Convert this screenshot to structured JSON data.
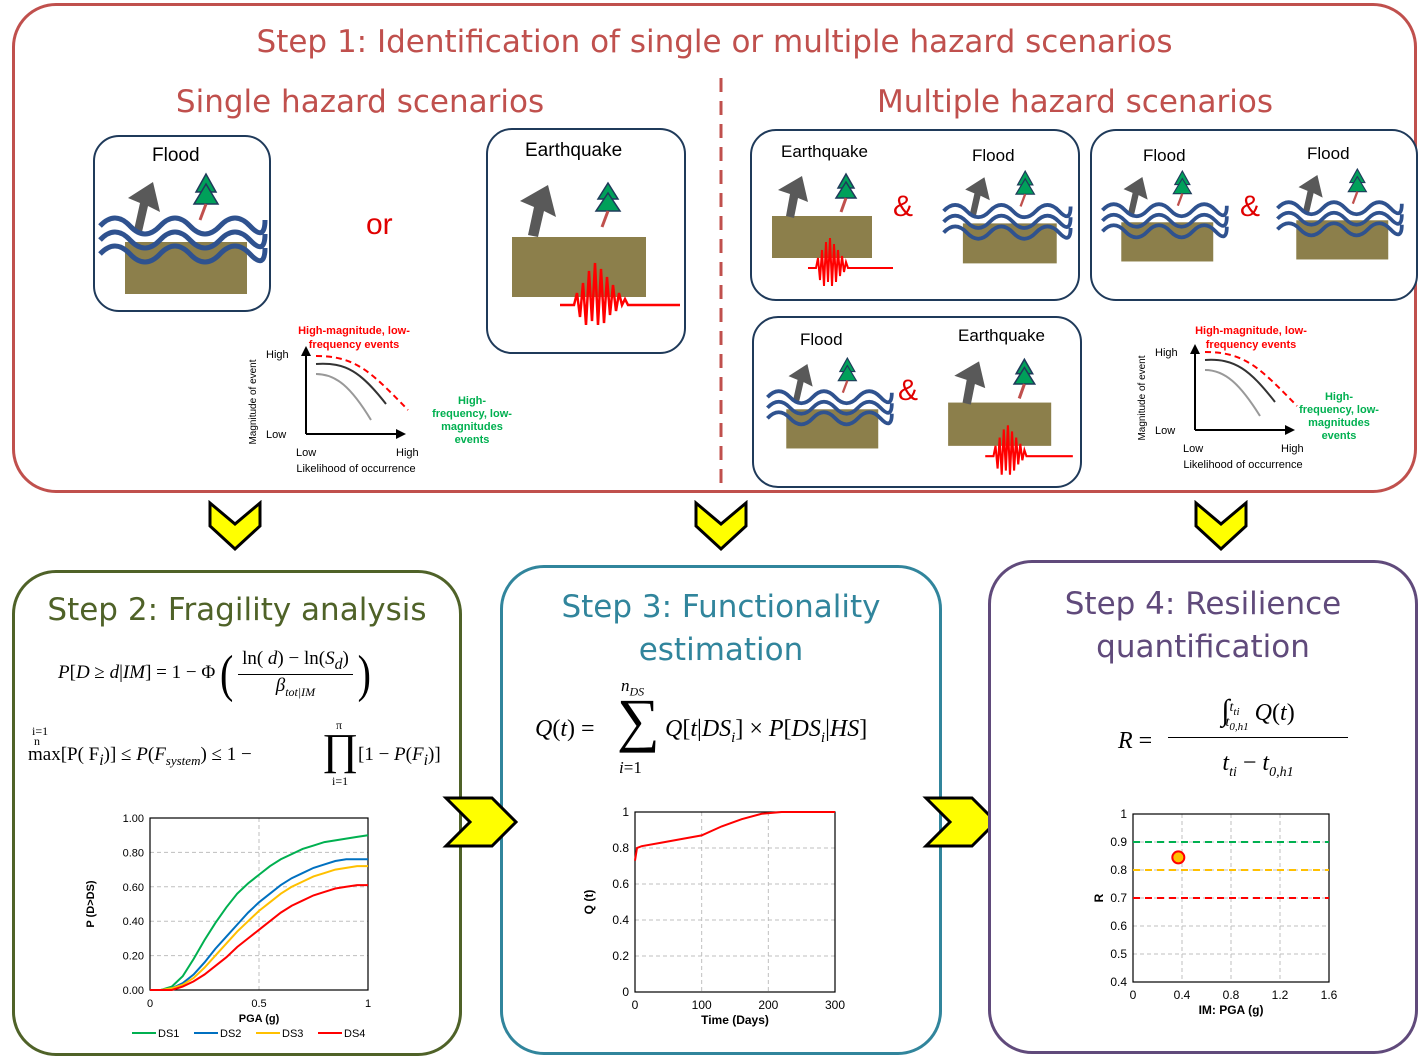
{
  "step1": {
    "title": "Step 1: Identification of single or multiple hazard scenarios",
    "single_heading": "Single hazard scenarios",
    "multiple_heading": "Multiple hazard scenarios",
    "or_label": "or",
    "amp_label": "&",
    "flood_label": "Flood",
    "earthquake_label": "Earthquake",
    "mini_chart": {
      "annotation_red": "High-magnitude, low-frequency events",
      "annotation_red_line1": "High-magnitude, low-",
      "annotation_red_line2": "frequency events",
      "annotation_green_line1": "High-",
      "annotation_green_line2": "frequency, low-",
      "annotation_green_line3": "magnitudes",
      "annotation_green_line4": "events",
      "ylabel": "Magnitude of event",
      "xlabel": "Likelihood of occurrence",
      "high": "High",
      "low": "Low"
    }
  },
  "step2": {
    "title": "Step 2: Fragility analysis"
  },
  "step3": {
    "title_line1": "Step 3: Functionality",
    "title_line2": "estimation"
  },
  "step4": {
    "title_line1": "Step 4: Resilience",
    "title_line2": "quantification"
  },
  "colors": {
    "step1": "#c0504d",
    "step2": "#4f6228",
    "step3": "#31859c",
    "step4": "#604a7b",
    "arrow_fill": "#ffff00",
    "arrow_stroke": "#000000",
    "ground": "#8c7f4b",
    "wave": "#2f528f",
    "quake": "#ff0000",
    "tree": "#00a05a",
    "house": "#595959"
  },
  "chart_data": [
    {
      "type": "line",
      "xlabel": "PGA (g)",
      "ylabel": "P (D>DS)",
      "xlim": [
        0,
        1
      ],
      "ylim": [
        0,
        1
      ],
      "x_ticks": [
        "0",
        "0.5",
        "1"
      ],
      "y_ticks": [
        "0.00",
        "0.20",
        "0.40",
        "0.60",
        "0.80",
        "1.00"
      ],
      "grid": true,
      "legend": "bottom",
      "x": [
        0,
        0.05,
        0.1,
        0.15,
        0.2,
        0.25,
        0.3,
        0.35,
        0.4,
        0.45,
        0.5,
        0.55,
        0.6,
        0.65,
        0.7,
        0.75,
        0.8,
        0.85,
        0.9,
        0.95,
        1.0
      ],
      "series": [
        {
          "name": "DS1",
          "color": "#00b050",
          "values": [
            0,
            0.0,
            0.02,
            0.08,
            0.18,
            0.29,
            0.39,
            0.48,
            0.56,
            0.62,
            0.67,
            0.72,
            0.76,
            0.79,
            0.82,
            0.84,
            0.86,
            0.87,
            0.88,
            0.89,
            0.9
          ]
        },
        {
          "name": "DS2",
          "color": "#0070c0",
          "values": [
            0,
            0.0,
            0.01,
            0.04,
            0.09,
            0.16,
            0.24,
            0.31,
            0.38,
            0.45,
            0.51,
            0.56,
            0.61,
            0.65,
            0.68,
            0.71,
            0.73,
            0.75,
            0.76,
            0.76,
            0.76
          ]
        },
        {
          "name": "DS3",
          "color": "#ffc000",
          "values": [
            0,
            0.0,
            0.01,
            0.03,
            0.07,
            0.13,
            0.2,
            0.27,
            0.34,
            0.4,
            0.46,
            0.51,
            0.56,
            0.6,
            0.63,
            0.66,
            0.68,
            0.7,
            0.71,
            0.72,
            0.72
          ]
        },
        {
          "name": "DS4",
          "color": "#ff0000",
          "values": [
            0,
            0.0,
            0.0,
            0.02,
            0.05,
            0.09,
            0.14,
            0.19,
            0.25,
            0.3,
            0.35,
            0.4,
            0.45,
            0.49,
            0.52,
            0.55,
            0.57,
            0.59,
            0.6,
            0.61,
            0.61
          ]
        }
      ]
    },
    {
      "type": "line",
      "xlabel": "Time (Days)",
      "ylabel": "Q (t)",
      "xlim": [
        0,
        300
      ],
      "ylim": [
        0,
        1
      ],
      "x_ticks": [
        "0",
        "100",
        "200",
        "300"
      ],
      "y_ticks": [
        "0",
        "0.2",
        "0.4",
        "0.6",
        "0.8",
        "1"
      ],
      "grid": true,
      "x": [
        0,
        3,
        10,
        40,
        70,
        100,
        130,
        160,
        190,
        220,
        250,
        280,
        300
      ],
      "series": [
        {
          "color": "#ff0000",
          "values": [
            0.73,
            0.8,
            0.81,
            0.83,
            0.85,
            0.87,
            0.92,
            0.96,
            0.99,
            1.0,
            1.0,
            1.0,
            1.0
          ]
        }
      ]
    },
    {
      "type": "scatter",
      "xlabel": "IM: PGA (g)",
      "ylabel": "R",
      "xlim": [
        0,
        1.6
      ],
      "ylim": [
        0.4,
        1
      ],
      "x_ticks": [
        "0",
        "0.4",
        "0.8",
        "1.2",
        "1.6"
      ],
      "y_ticks": [
        "0.4",
        "0.5",
        "0.6",
        "0.7",
        "0.8",
        "0.9",
        "1"
      ],
      "grid": true,
      "thresholds": [
        {
          "value": 0.9,
          "color": "#00b050"
        },
        {
          "value": 0.8,
          "color": "#ffc000"
        },
        {
          "value": 0.7,
          "color": "#ff0000"
        }
      ],
      "points": [
        {
          "x": 0.37,
          "y": 0.845,
          "fill": "#ffc000",
          "stroke": "#ff0000"
        }
      ]
    }
  ]
}
